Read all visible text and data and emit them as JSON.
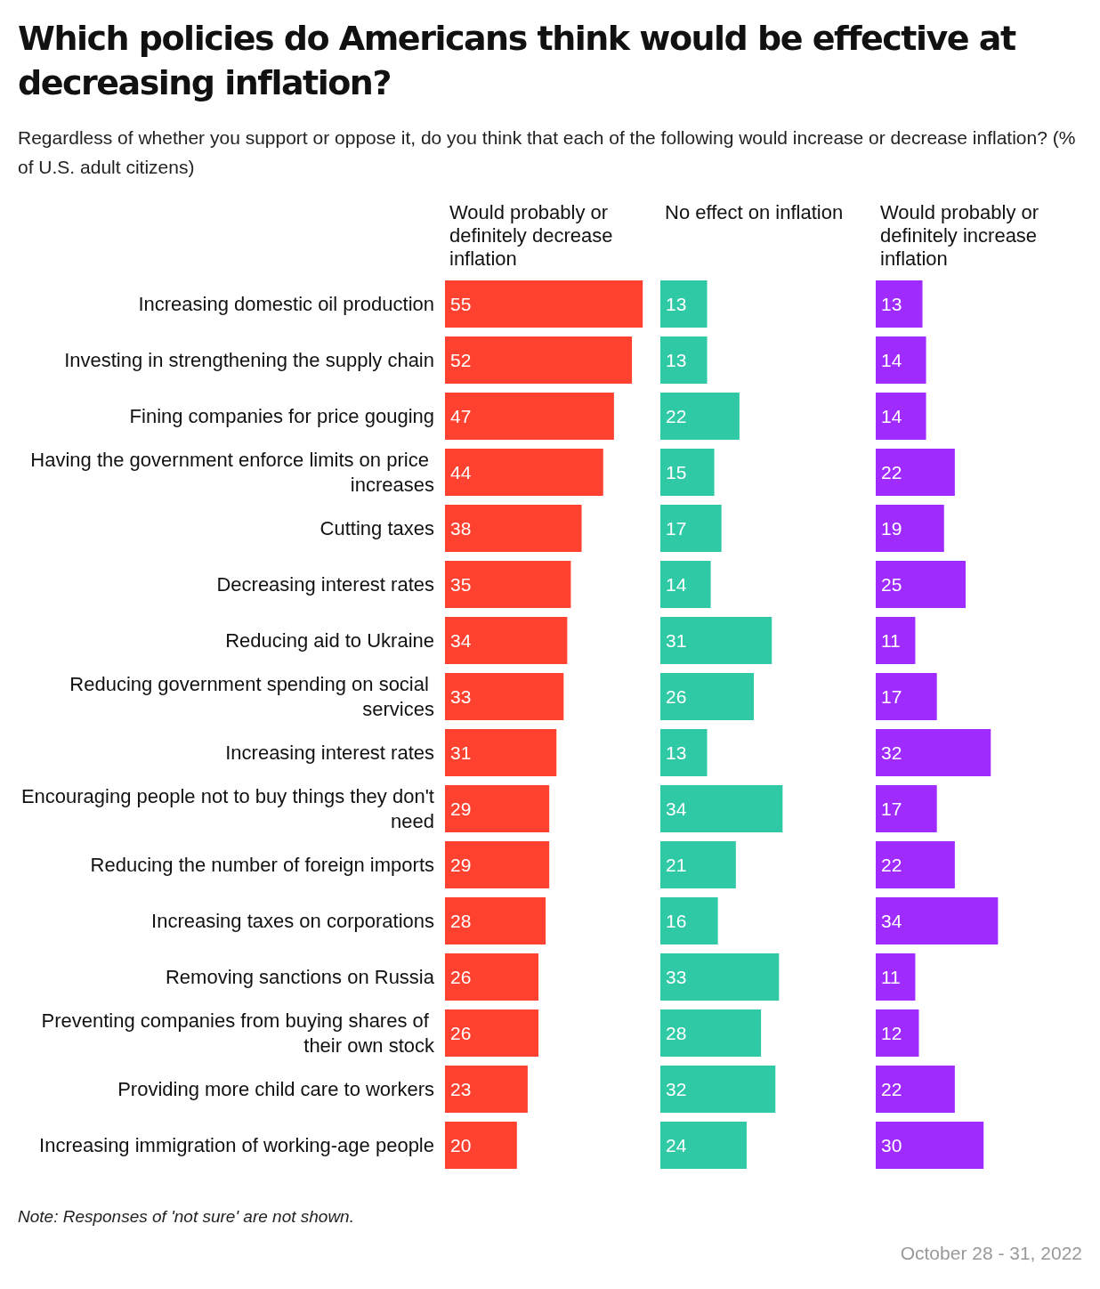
{
  "chart_data": [
    {
      "type": "bar",
      "orientation": "horizontal",
      "title": "Which policies do Americans think would be effective at decreasing inflation?",
      "subtitle": "Regardless of whether you support or oppose it, do you think that each of the following would increase or decrease inflation? (% of U.S. adult citizens)",
      "xlabel": "Would probably or definitely decrease inflation",
      "categories": [
        "Increasing domestic oil production",
        "Investing in strengthening the supply chain",
        "Fining companies for price gouging",
        "Having the government enforce limits on price increases",
        "Cutting taxes",
        "Decreasing interest rates",
        "Reducing aid to Ukraine",
        "Reducing government spending on social services",
        "Increasing interest rates",
        "Encouraging people not to buy things they don't need",
        "Reducing the number of foreign imports",
        "Increasing taxes on corporations",
        "Removing sanctions on Russia",
        "Preventing companies from buying shares of their own stock",
        "Providing more child care to workers",
        "Increasing immigration of working-age people"
      ],
      "series": [
        {
          "color": "#ff4130",
          "values": [
            55,
            52,
            47,
            44,
            38,
            35,
            34,
            33,
            31,
            29,
            29,
            28,
            26,
            26,
            23,
            20
          ]
        }
      ],
      "data_labels": true,
      "tick_labels": "y",
      "annotations": [
        "Note: Responses of 'not sure' are not shown.",
        "October 28 - 31, 2022"
      ]
    },
    {
      "type": "bar",
      "orientation": "horizontal",
      "xlabel": "No effect on inflation",
      "categories": [
        null,
        null,
        null,
        null,
        null,
        null,
        null,
        null,
        null,
        null,
        null,
        null,
        null,
        null,
        null,
        null
      ],
      "series": [
        {
          "color": "#2fc9a6",
          "values": [
            13,
            13,
            22,
            15,
            17,
            14,
            31,
            26,
            13,
            34,
            21,
            16,
            33,
            28,
            32,
            24
          ]
        }
      ],
      "data_labels": true,
      "tick_labels": false
    },
    {
      "type": "bar",
      "orientation": "horizontal",
      "xlabel": "Would probably or definitely increase inflation",
      "categories": [
        null,
        null,
        null,
        null,
        null,
        null,
        null,
        null,
        null,
        null,
        null,
        null,
        null,
        null,
        null,
        null
      ],
      "series": [
        {
          "color": "#a02bff",
          "values": [
            13,
            14,
            14,
            22,
            19,
            25,
            11,
            17,
            32,
            17,
            22,
            34,
            11,
            12,
            22,
            30
          ]
        }
      ],
      "data_labels": true,
      "tick_labels": false
    }
  ]
}
